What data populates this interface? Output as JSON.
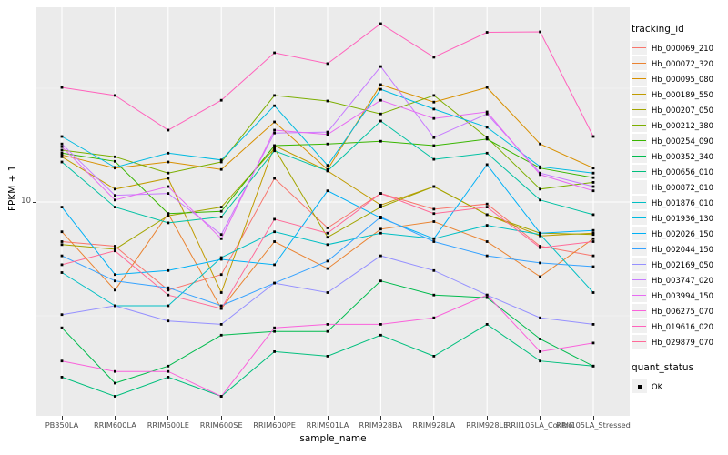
{
  "axis": {
    "x_title": "sample_name",
    "y_title": "FPKM + 1",
    "y_tick_label": "10"
  },
  "legend": {
    "tracking_title": "tracking_id",
    "quant_title": "quant_status",
    "quant_items": [
      {
        "label": "OK"
      }
    ]
  },
  "chart_data": {
    "type": "line",
    "title": "",
    "xlabel": "sample_name",
    "ylabel": "FPKM + 1",
    "y_scale": "log10",
    "y_ticks": [
      10
    ],
    "ylim_approx": [
      1.1,
      65
    ],
    "grid": "ggplot-white-on-gray",
    "panel_bg": "#EBEBEB",
    "grid_color": "#FFFFFF",
    "point_marker": "small-black-square",
    "legend_position": "right",
    "categories": [
      "PB350LA",
      "RRIM600LA",
      "RRIM600LE",
      "RRIM600SE",
      "RRIM600PE",
      "RRIM901LA",
      "RRIM928BA",
      "RRIM928LA",
      "RRIM928LE",
      "RRII105LA_Control",
      "RRII105LA_Stressed"
    ],
    "series": [
      {
        "name": "Hb_000069_210",
        "color": "#F8766D",
        "values": [
          6.7,
          6.4,
          4.1,
          4.8,
          12.7,
          7.7,
          10.9,
          9.3,
          9.8,
          6.4,
          5.8
        ]
      },
      {
        "name": "Hb_000072_320",
        "color": "#EA8331",
        "values": [
          7.4,
          4.1,
          8.9,
          3.4,
          6.7,
          5.1,
          7.6,
          8.2,
          6.7,
          4.7,
          6.9
        ]
      },
      {
        "name": "Hb_000095_080",
        "color": "#D89000",
        "values": [
          16.1,
          14.1,
          15.0,
          13.9,
          22.5,
          13.9,
          32.8,
          27.5,
          31.9,
          18.0,
          14.1
        ]
      },
      {
        "name": "Hb_000189_550",
        "color": "#C09B00",
        "values": [
          15.8,
          11.4,
          12.7,
          4.0,
          17.7,
          13.7,
          9.7,
          11.7,
          8.8,
          7.1,
          7.3
        ]
      },
      {
        "name": "Hb_000207_050",
        "color": "#A3A500",
        "values": [
          6.5,
          6.2,
          8.7,
          9.5,
          17.2,
          7.0,
          9.5,
          11.7,
          8.8,
          7.3,
          7.2
        ]
      },
      {
        "name": "Hb_000212_380",
        "color": "#7CAE00",
        "values": [
          16.9,
          15.8,
          13.4,
          15.0,
          29.4,
          27.8,
          24.4,
          29.4,
          19.2,
          11.4,
          12.2
        ]
      },
      {
        "name": "Hb_000254_090",
        "color": "#39B600",
        "values": [
          16.4,
          15.1,
          8.9,
          9.1,
          17.7,
          18.0,
          18.5,
          17.7,
          18.9,
          14.1,
          12.8
        ]
      },
      {
        "name": "Hb_000352_340",
        "color": "#00BB4E",
        "values": [
          2.8,
          1.6,
          1.9,
          2.6,
          2.7,
          2.7,
          4.5,
          3.9,
          3.8,
          2.5,
          1.9
        ]
      },
      {
        "name": "Hb_000656_010",
        "color": "#00BF7D",
        "values": [
          1.7,
          1.4,
          1.7,
          1.4,
          2.2,
          2.1,
          2.6,
          2.1,
          2.9,
          2.0,
          1.9
        ]
      },
      {
        "name": "Hb_000872_010",
        "color": "#00C1A3",
        "values": [
          15.0,
          9.5,
          8.1,
          8.6,
          16.8,
          13.7,
          22.7,
          15.4,
          16.4,
          10.2,
          8.8
        ]
      },
      {
        "name": "Hb_001876_010",
        "color": "#00BFC4",
        "values": [
          4.9,
          3.5,
          3.5,
          5.7,
          7.4,
          6.5,
          7.3,
          6.9,
          7.9,
          7.2,
          4.0
        ]
      },
      {
        "name": "Hb_001936_130",
        "color": "#00BAE0",
        "values": [
          19.4,
          14.2,
          16.4,
          15.3,
          26.5,
          14.5,
          31.3,
          25.6,
          21.3,
          14.3,
          13.4
        ]
      },
      {
        "name": "Hb_002026_150",
        "color": "#00B0F6",
        "values": [
          9.5,
          4.8,
          5.0,
          5.6,
          5.3,
          11.2,
          8.5,
          6.9,
          14.6,
          7.3,
          7.5
        ]
      },
      {
        "name": "Hb_002044_150",
        "color": "#35A2FF",
        "values": [
          5.8,
          4.5,
          4.2,
          3.5,
          4.4,
          5.5,
          8.6,
          6.7,
          5.8,
          5.4,
          5.2
        ]
      },
      {
        "name": "Hb_002169_050",
        "color": "#9590FF",
        "values": [
          3.2,
          3.5,
          3.0,
          2.9,
          4.4,
          4.0,
          5.8,
          5.0,
          3.9,
          3.1,
          2.9
        ]
      },
      {
        "name": "Hb_003747_020",
        "color": "#C77CFF",
        "values": [
          18.0,
          10.7,
          10.9,
          7.2,
          20.1,
          20.3,
          39.4,
          19.2,
          24.4,
          13.4,
          11.7
        ]
      },
      {
        "name": "Hb_003994_150",
        "color": "#E76BF3",
        "values": [
          17.5,
          10.2,
          11.7,
          6.9,
          20.7,
          19.8,
          28.0,
          23.3,
          24.9,
          13.2,
          11.2
        ]
      },
      {
        "name": "Hb_006275_070",
        "color": "#FA62DB",
        "values": [
          2.0,
          1.8,
          1.8,
          1.4,
          2.8,
          2.9,
          2.9,
          3.1,
          3.9,
          2.2,
          2.4
        ]
      },
      {
        "name": "Hb_019616_020",
        "color": "#FF62BC",
        "values": [
          31.9,
          29.4,
          20.7,
          28.0,
          45.3,
          40.6,
          60.8,
          43.3,
          55.7,
          56.0,
          19.4
        ]
      },
      {
        "name": "Hb_029879_070",
        "color": "#FF6A98",
        "values": [
          5.3,
          6.1,
          3.9,
          3.4,
          8.4,
          7.3,
          10.9,
          8.9,
          9.5,
          6.3,
          6.7
        ]
      }
    ]
  }
}
